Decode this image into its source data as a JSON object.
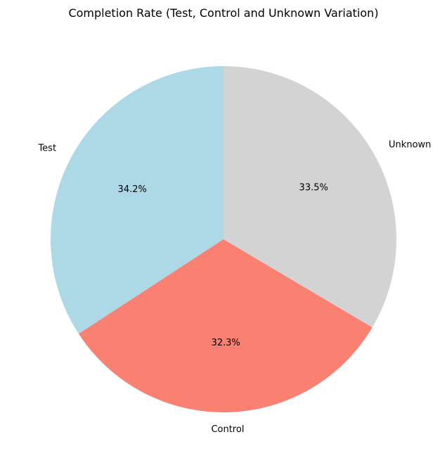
{
  "chart_data": {
    "type": "pie",
    "title": "Completion Rate (Test, Control and Unknown Variation)",
    "start_angle_deg": 90,
    "direction": "counterclockwise",
    "slices": [
      {
        "label": "Test",
        "value": 34.2,
        "pct_label": "34.2%",
        "color": "#add8e6"
      },
      {
        "label": "Control",
        "value": 32.3,
        "pct_label": "32.3%",
        "color": "#fa8072"
      },
      {
        "label": "Unknown",
        "value": 33.5,
        "pct_label": "33.5%",
        "color": "#d3d3d3"
      }
    ]
  }
}
